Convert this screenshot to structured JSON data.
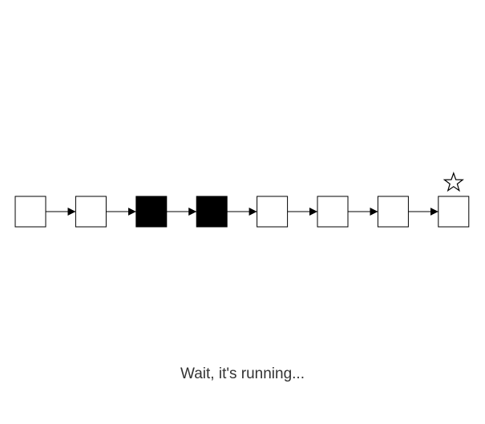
{
  "chain": {
    "nodes": [
      {
        "filled": false
      },
      {
        "filled": false
      },
      {
        "filled": true
      },
      {
        "filled": true
      },
      {
        "filled": false
      },
      {
        "filled": false
      },
      {
        "filled": false
      },
      {
        "filled": false
      }
    ],
    "goal_marker": {
      "node_index": 7,
      "icon": "star-outline-icon"
    },
    "colors": {
      "node_border": "#000000",
      "node_fill_empty": "#ffffff",
      "node_fill_active": "#000000",
      "arrow": "#000000"
    }
  },
  "status": {
    "message": "Wait, it's running..."
  }
}
